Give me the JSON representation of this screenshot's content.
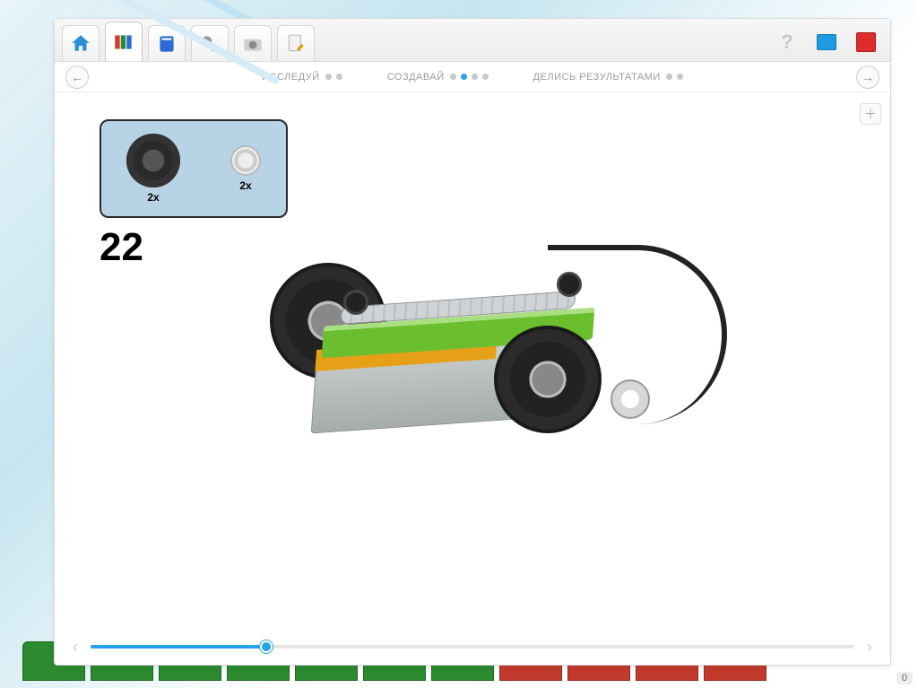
{
  "toolbar": {
    "home": "home-icon",
    "library": "library-icon",
    "book": "book-icon",
    "gears": "gears-icon",
    "camera": "camera-icon",
    "note": "note-icon",
    "help": "?"
  },
  "steps": {
    "s1": {
      "label": "ИССЛЕДУЙ",
      "dots": [
        false,
        false
      ]
    },
    "s2": {
      "label": "СОЗДАВАЙ",
      "dots": [
        false,
        true,
        false,
        false
      ]
    },
    "s3": {
      "label": "ДЕЛИСЬ РЕЗУЛЬТАТАМИ",
      "dots": [
        false,
        false
      ]
    }
  },
  "parts": {
    "a_qty": "2x",
    "b_qty": "2x"
  },
  "step_number": "22",
  "slider": {
    "percent": 23
  },
  "colors": {
    "accent": "#2aa3e6",
    "green_block": "#2c8a2f",
    "red_block": "#c23a2d",
    "toolbar_red": "#de2b2b",
    "toolbar_blue": "#1e9ae0"
  },
  "corner_value": "0"
}
